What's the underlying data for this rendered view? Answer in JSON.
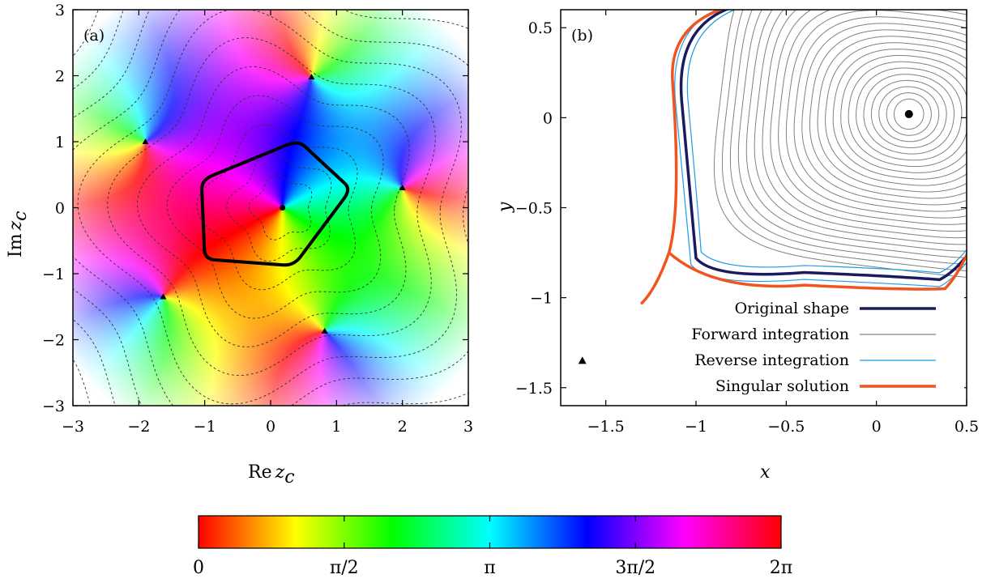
{
  "chart_data": [
    {
      "panel": "(a)",
      "type": "heatmap",
      "xlabel_main": "Re",
      "xlabel_var": "z",
      "xlabel_sub": "c",
      "ylabel_main": "Im",
      "ylabel_var": "z",
      "ylabel_sub": "c",
      "xlim": [
        -3,
        3
      ],
      "ylim": [
        -3,
        3
      ],
      "xticks": [
        -3,
        -2,
        -1,
        0,
        1,
        2,
        3
      ],
      "yticks": [
        -3,
        -2,
        -1,
        0,
        1,
        2,
        3
      ],
      "xtick_labels": [
        "−3",
        "−2",
        "−1",
        "0",
        "1",
        "2",
        "3"
      ],
      "ytick_labels": [
        "−3",
        "−2",
        "−1",
        "0",
        "1",
        "2",
        "3"
      ],
      "zero": [
        0.18,
        0.0
      ],
      "poles": [
        [
          0.62,
          1.98
        ],
        [
          -1.9,
          1.0
        ],
        [
          2.0,
          0.3
        ],
        [
          -1.63,
          -1.35
        ],
        [
          0.82,
          -1.87
        ]
      ],
      "curve_vertices": [
        [
          0.42,
          1.02
        ],
        [
          1.22,
          0.28
        ],
        [
          0.35,
          -0.88
        ],
        [
          -1.0,
          -0.78
        ],
        [
          -1.05,
          0.42
        ]
      ],
      "grid": false
    },
    {
      "panel": "(b)",
      "type": "line",
      "xlabel": "x",
      "ylabel": "y",
      "xlim": [
        -1.75,
        0.5
      ],
      "ylim": [
        -1.6,
        0.6
      ],
      "xticks": [
        -1.5,
        -1,
        -0.5,
        0,
        0.5
      ],
      "yticks": [
        -1.5,
        -1,
        -0.5,
        0,
        0.5
      ],
      "xtick_labels": [
        "−1.5",
        "−1",
        "−0.5",
        "0",
        "0.5"
      ],
      "ytick_labels": [
        "−1.5",
        "−1",
        "−0.5",
        "0",
        "0.5"
      ],
      "center_point": [
        0.18,
        0.02
      ],
      "triangle_point": [
        -1.63,
        -1.35
      ],
      "legend_position": "bottom-right",
      "series": [
        {
          "name": "Original shape",
          "color": "#1a1a5e",
          "width": 3.5
        },
        {
          "name": "Forward integration",
          "color": "#808080",
          "width": 1.2
        },
        {
          "name": "Reverse integration",
          "color": "#1e9be6",
          "width": 1.2
        },
        {
          "name": "Singular solution",
          "color": "#f2541f",
          "width": 3.5
        }
      ],
      "grid": false
    }
  ],
  "colorbar": {
    "tick_labels": [
      "0",
      "π/2",
      "π",
      "3π/2",
      "2π"
    ]
  }
}
